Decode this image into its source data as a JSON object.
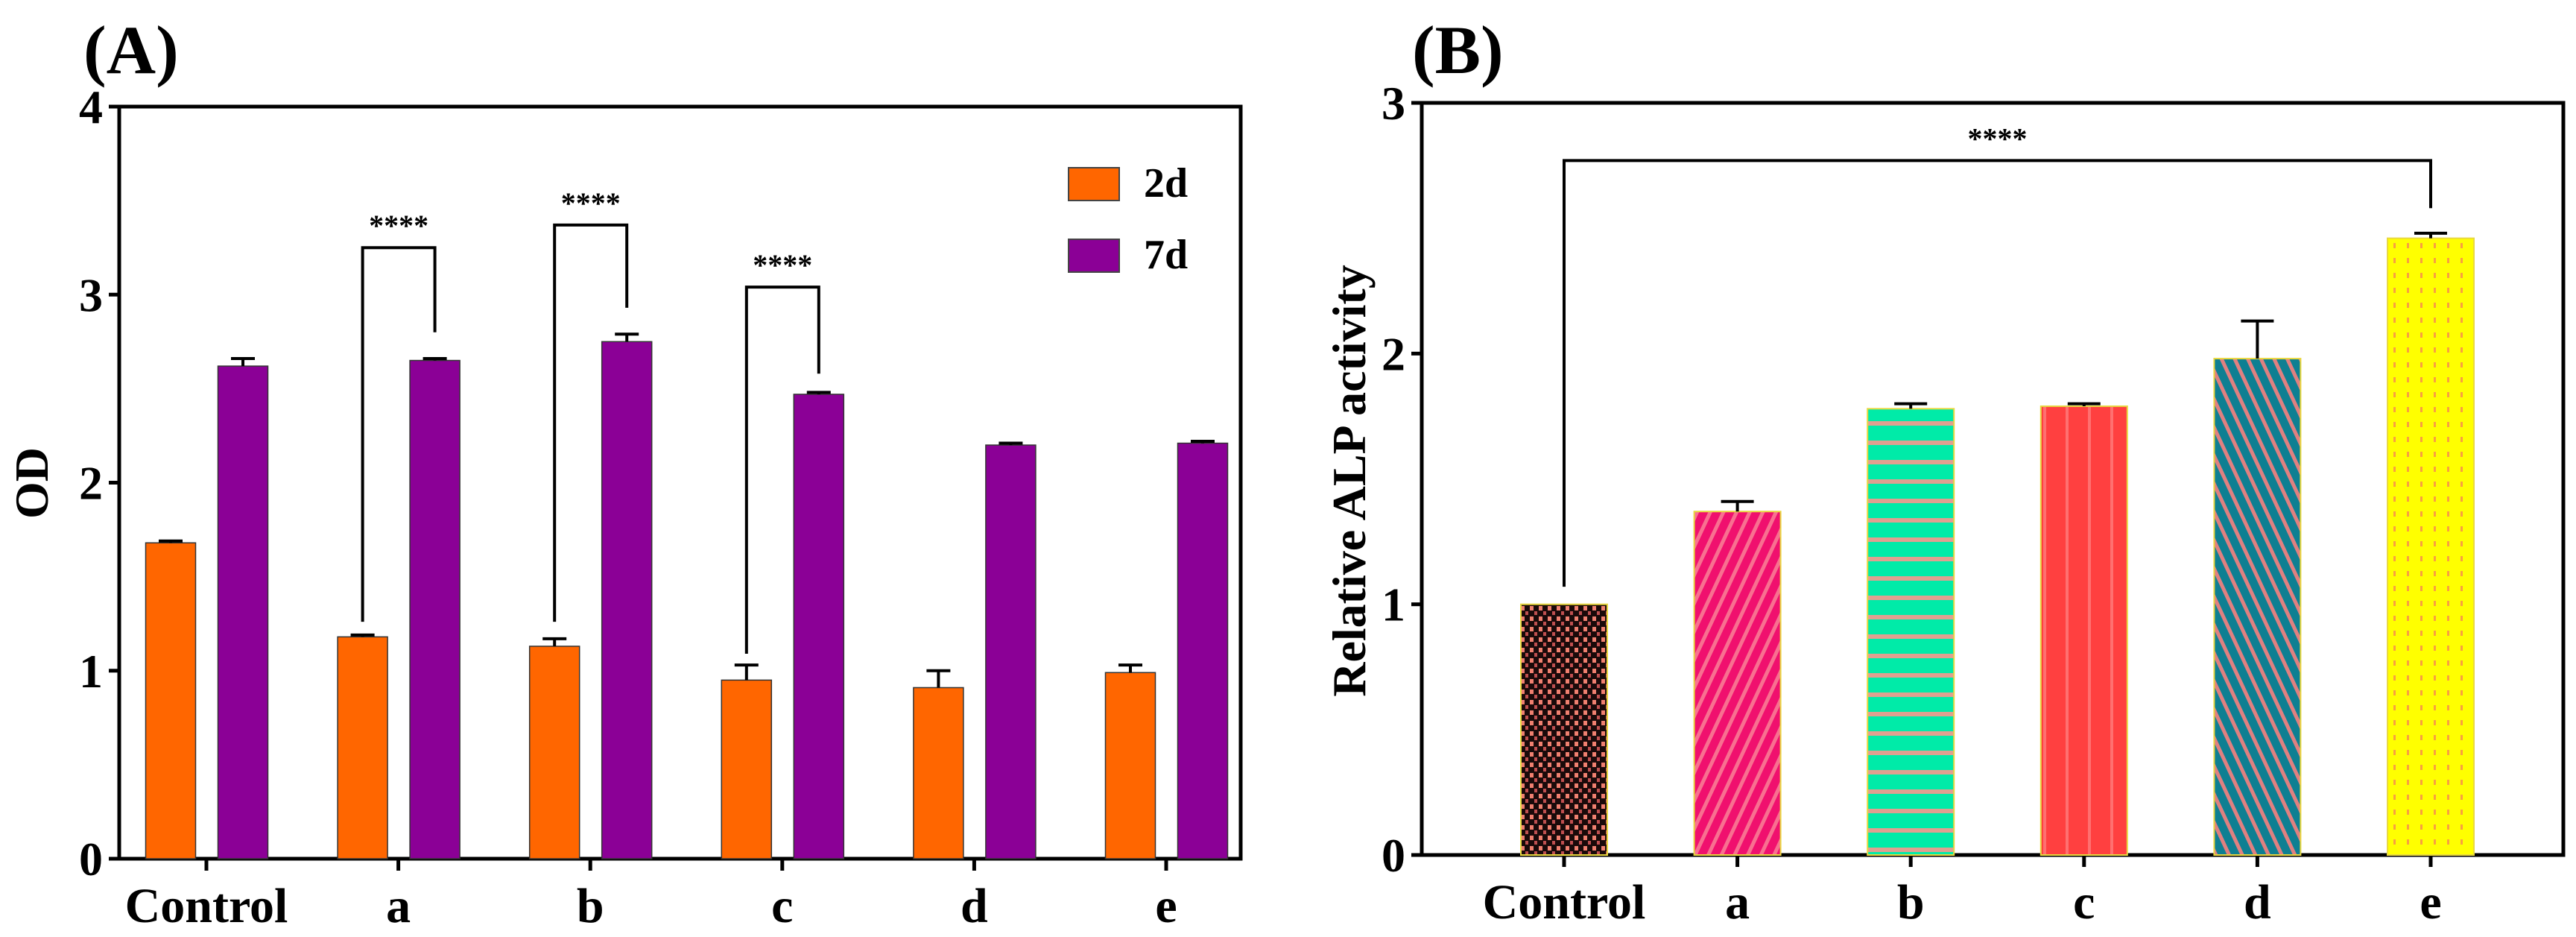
{
  "chart_data": [
    {
      "type": "bar",
      "panel_label": "(A)",
      "title": "",
      "xlabel": "",
      "ylabel": "OD",
      "ylim": [
        0,
        4
      ],
      "yticks": [
        "0",
        "1",
        "2",
        "3",
        "4"
      ],
      "categories": [
        "Control",
        "a",
        "b",
        "c",
        "d",
        "e"
      ],
      "legend_position": "top-right",
      "series": [
        {
          "name": "2d",
          "color": "#FF6600",
          "values": [
            1.68,
            1.18,
            1.13,
            0.95,
            0.91,
            0.99
          ],
          "errors": [
            0.01,
            0.01,
            0.04,
            0.08,
            0.09,
            0.04
          ]
        },
        {
          "name": "7d",
          "color": "#8B0096",
          "values": [
            2.62,
            2.65,
            2.75,
            2.47,
            2.2,
            2.21
          ],
          "errors": [
            0.04,
            0.01,
            0.04,
            0.01,
            0.01,
            0.01
          ]
        }
      ],
      "annotations": [
        {
          "category": "a",
          "text": "****",
          "level": 3.25,
          "left_end": 1.26,
          "right_end": 2.8
        },
        {
          "category": "b",
          "text": "****",
          "level": 3.37,
          "left_end": 1.26,
          "right_end": 2.93
        },
        {
          "category": "c",
          "text": "****",
          "level": 3.04,
          "left_end": 1.09,
          "right_end": 2.58
        }
      ]
    },
    {
      "type": "bar",
      "panel_label": "(B)",
      "title": "",
      "xlabel": "",
      "ylabel": "Relative ALP activity",
      "ylim": [
        0,
        3
      ],
      "yticks": [
        "0",
        "1",
        "2",
        "3"
      ],
      "categories": [
        "Control",
        "a",
        "b",
        "c",
        "d",
        "e"
      ],
      "values": [
        1.0,
        1.37,
        1.78,
        1.79,
        1.98,
        2.46
      ],
      "errors": [
        0.0,
        0.04,
        0.02,
        0.01,
        0.15,
        0.02
      ],
      "colors": [
        "#8B2E2E",
        "#F0106E",
        "#00EBA8",
        "#FF4040",
        "#0E7F92",
        "#FFFF00"
      ],
      "patterns": [
        "checker",
        "diagonal-stripes",
        "horizontal-stripes",
        "vertical-stripes",
        "diagonal-stripes",
        "dots"
      ],
      "annotations": [
        {
          "from": "Control",
          "to": "e",
          "text": "****",
          "level": 2.77,
          "left_end": 1.07,
          "right_end": 2.58
        }
      ]
    }
  ]
}
